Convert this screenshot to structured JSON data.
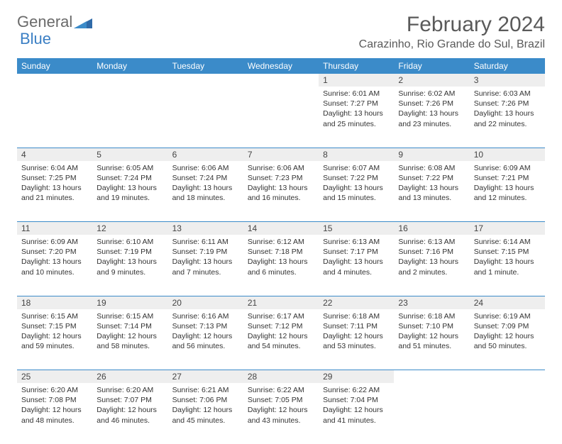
{
  "logo": {
    "text1": "General",
    "text2": "Blue"
  },
  "title": "February 2024",
  "location": "Carazinho, Rio Grande do Sul, Brazil",
  "colors": {
    "header_bg": "#3b8bc9",
    "header_fg": "#ffffff",
    "daynum_bg": "#eeeeee",
    "divider": "#3b8bc9"
  },
  "fonts": {
    "title_size": 30,
    "location_size": 16,
    "dayhead_size": 12,
    "cell_size": 10.5
  },
  "days_of_week": [
    "Sunday",
    "Monday",
    "Tuesday",
    "Wednesday",
    "Thursday",
    "Friday",
    "Saturday"
  ],
  "weeks": [
    {
      "nums": [
        "",
        "",
        "",
        "",
        "1",
        "2",
        "3"
      ],
      "cells": [
        null,
        null,
        null,
        null,
        {
          "sunrise": "Sunrise: 6:01 AM",
          "sunset": "Sunset: 7:27 PM",
          "daylight": "Daylight: 13 hours and 25 minutes."
        },
        {
          "sunrise": "Sunrise: 6:02 AM",
          "sunset": "Sunset: 7:26 PM",
          "daylight": "Daylight: 13 hours and 23 minutes."
        },
        {
          "sunrise": "Sunrise: 6:03 AM",
          "sunset": "Sunset: 7:26 PM",
          "daylight": "Daylight: 13 hours and 22 minutes."
        }
      ]
    },
    {
      "nums": [
        "4",
        "5",
        "6",
        "7",
        "8",
        "9",
        "10"
      ],
      "cells": [
        {
          "sunrise": "Sunrise: 6:04 AM",
          "sunset": "Sunset: 7:25 PM",
          "daylight": "Daylight: 13 hours and 21 minutes."
        },
        {
          "sunrise": "Sunrise: 6:05 AM",
          "sunset": "Sunset: 7:24 PM",
          "daylight": "Daylight: 13 hours and 19 minutes."
        },
        {
          "sunrise": "Sunrise: 6:06 AM",
          "sunset": "Sunset: 7:24 PM",
          "daylight": "Daylight: 13 hours and 18 minutes."
        },
        {
          "sunrise": "Sunrise: 6:06 AM",
          "sunset": "Sunset: 7:23 PM",
          "daylight": "Daylight: 13 hours and 16 minutes."
        },
        {
          "sunrise": "Sunrise: 6:07 AM",
          "sunset": "Sunset: 7:22 PM",
          "daylight": "Daylight: 13 hours and 15 minutes."
        },
        {
          "sunrise": "Sunrise: 6:08 AM",
          "sunset": "Sunset: 7:22 PM",
          "daylight": "Daylight: 13 hours and 13 minutes."
        },
        {
          "sunrise": "Sunrise: 6:09 AM",
          "sunset": "Sunset: 7:21 PM",
          "daylight": "Daylight: 13 hours and 12 minutes."
        }
      ]
    },
    {
      "nums": [
        "11",
        "12",
        "13",
        "14",
        "15",
        "16",
        "17"
      ],
      "cells": [
        {
          "sunrise": "Sunrise: 6:09 AM",
          "sunset": "Sunset: 7:20 PM",
          "daylight": "Daylight: 13 hours and 10 minutes."
        },
        {
          "sunrise": "Sunrise: 6:10 AM",
          "sunset": "Sunset: 7:19 PM",
          "daylight": "Daylight: 13 hours and 9 minutes."
        },
        {
          "sunrise": "Sunrise: 6:11 AM",
          "sunset": "Sunset: 7:19 PM",
          "daylight": "Daylight: 13 hours and 7 minutes."
        },
        {
          "sunrise": "Sunrise: 6:12 AM",
          "sunset": "Sunset: 7:18 PM",
          "daylight": "Daylight: 13 hours and 6 minutes."
        },
        {
          "sunrise": "Sunrise: 6:13 AM",
          "sunset": "Sunset: 7:17 PM",
          "daylight": "Daylight: 13 hours and 4 minutes."
        },
        {
          "sunrise": "Sunrise: 6:13 AM",
          "sunset": "Sunset: 7:16 PM",
          "daylight": "Daylight: 13 hours and 2 minutes."
        },
        {
          "sunrise": "Sunrise: 6:14 AM",
          "sunset": "Sunset: 7:15 PM",
          "daylight": "Daylight: 13 hours and 1 minute."
        }
      ]
    },
    {
      "nums": [
        "18",
        "19",
        "20",
        "21",
        "22",
        "23",
        "24"
      ],
      "cells": [
        {
          "sunrise": "Sunrise: 6:15 AM",
          "sunset": "Sunset: 7:15 PM",
          "daylight": "Daylight: 12 hours and 59 minutes."
        },
        {
          "sunrise": "Sunrise: 6:15 AM",
          "sunset": "Sunset: 7:14 PM",
          "daylight": "Daylight: 12 hours and 58 minutes."
        },
        {
          "sunrise": "Sunrise: 6:16 AM",
          "sunset": "Sunset: 7:13 PM",
          "daylight": "Daylight: 12 hours and 56 minutes."
        },
        {
          "sunrise": "Sunrise: 6:17 AM",
          "sunset": "Sunset: 7:12 PM",
          "daylight": "Daylight: 12 hours and 54 minutes."
        },
        {
          "sunrise": "Sunrise: 6:18 AM",
          "sunset": "Sunset: 7:11 PM",
          "daylight": "Daylight: 12 hours and 53 minutes."
        },
        {
          "sunrise": "Sunrise: 6:18 AM",
          "sunset": "Sunset: 7:10 PM",
          "daylight": "Daylight: 12 hours and 51 minutes."
        },
        {
          "sunrise": "Sunrise: 6:19 AM",
          "sunset": "Sunset: 7:09 PM",
          "daylight": "Daylight: 12 hours and 50 minutes."
        }
      ]
    },
    {
      "nums": [
        "25",
        "26",
        "27",
        "28",
        "29",
        "",
        ""
      ],
      "cells": [
        {
          "sunrise": "Sunrise: 6:20 AM",
          "sunset": "Sunset: 7:08 PM",
          "daylight": "Daylight: 12 hours and 48 minutes."
        },
        {
          "sunrise": "Sunrise: 6:20 AM",
          "sunset": "Sunset: 7:07 PM",
          "daylight": "Daylight: 12 hours and 46 minutes."
        },
        {
          "sunrise": "Sunrise: 6:21 AM",
          "sunset": "Sunset: 7:06 PM",
          "daylight": "Daylight: 12 hours and 45 minutes."
        },
        {
          "sunrise": "Sunrise: 6:22 AM",
          "sunset": "Sunset: 7:05 PM",
          "daylight": "Daylight: 12 hours and 43 minutes."
        },
        {
          "sunrise": "Sunrise: 6:22 AM",
          "sunset": "Sunset: 7:04 PM",
          "daylight": "Daylight: 12 hours and 41 minutes."
        },
        null,
        null
      ]
    }
  ]
}
